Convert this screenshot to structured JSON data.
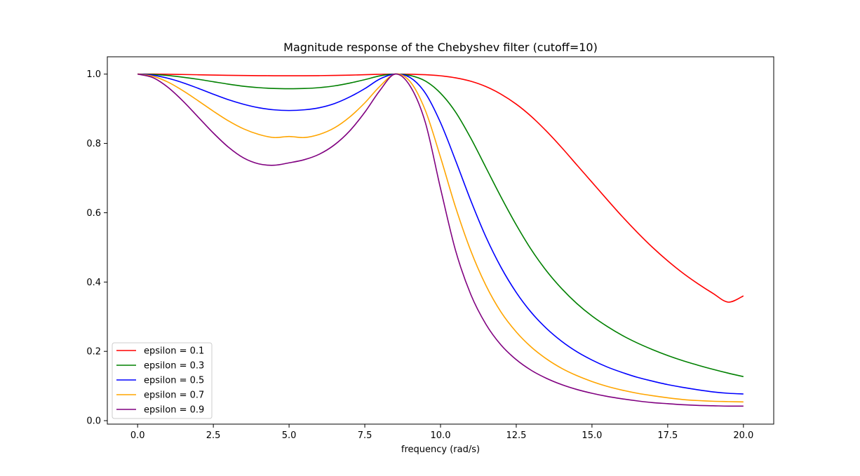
{
  "chart_data": {
    "type": "line",
    "title": "Magnitude response of the Chebyshev filter (cutoff=10)",
    "xlabel": "frequency (rad/s)",
    "ylabel": "",
    "xlim": [
      -1.0,
      21.0
    ],
    "ylim": [
      -0.01,
      1.05
    ],
    "x_ticks": [
      0.0,
      2.5,
      5.0,
      7.5,
      10.0,
      12.5,
      15.0,
      17.5,
      20.0
    ],
    "x_tick_labels": [
      "0.0",
      "2.5",
      "5.0",
      "7.5",
      "10.0",
      "12.5",
      "15.0",
      "17.5",
      "20.0"
    ],
    "y_ticks": [
      0.0,
      0.2,
      0.4,
      0.6,
      0.8,
      1.0
    ],
    "y_tick_labels": [
      "0.0",
      "0.2",
      "0.4",
      "0.6",
      "0.8",
      "1.0"
    ],
    "grid": false,
    "legend_position": "lower-left",
    "x": [
      0,
      0.5,
      1,
      1.5,
      2,
      2.5,
      3,
      3.5,
      4,
      4.5,
      5,
      5.5,
      6,
      6.5,
      7,
      7.5,
      8,
      8.5,
      9,
      9.5,
      10,
      10.5,
      11,
      11.5,
      12,
      12.5,
      13,
      13.5,
      14,
      14.5,
      15,
      15.5,
      16,
      16.5,
      17,
      17.5,
      18,
      18.5,
      19,
      19.5,
      20
    ],
    "series": [
      {
        "name": "epsilon = 0.1",
        "color": "#ff0000",
        "values": [
          1.0,
          1.0,
          0.9995,
          0.9989,
          0.9981,
          0.9973,
          0.9966,
          0.9961,
          0.9956,
          0.9953,
          0.9952,
          0.9953,
          0.9956,
          0.9962,
          0.9971,
          0.9982,
          0.9994,
          1.0,
          0.9996,
          0.9982,
          0.9951,
          0.9892,
          0.9794,
          0.964,
          0.942,
          0.9133,
          0.8776,
          0.8351,
          0.788,
          0.738,
          0.688,
          0.638,
          0.589,
          0.543,
          0.5,
          0.461,
          0.426,
          0.395,
          0.367,
          0.342,
          0.36
        ]
      },
      {
        "name": "epsilon = 0.3",
        "color": "#008000",
        "values": [
          1.0,
          0.999,
          0.996,
          0.991,
          0.985,
          0.978,
          0.971,
          0.965,
          0.961,
          0.9585,
          0.9578,
          0.9585,
          0.961,
          0.966,
          0.974,
          0.984,
          0.995,
          1.0,
          0.996,
          0.98,
          0.945,
          0.89,
          0.815,
          0.73,
          0.645,
          0.565,
          0.493,
          0.432,
          0.381,
          0.338,
          0.302,
          0.272,
          0.246,
          0.224,
          0.205,
          0.188,
          0.173,
          0.16,
          0.148,
          0.137,
          0.127
        ]
      },
      {
        "name": "epsilon = 0.5",
        "color": "#0000ff",
        "values": [
          1.0,
          0.997,
          0.988,
          0.975,
          0.959,
          0.942,
          0.926,
          0.913,
          0.903,
          0.897,
          0.895,
          0.897,
          0.903,
          0.915,
          0.934,
          0.958,
          0.986,
          1.0,
          0.99,
          0.945,
          0.86,
          0.75,
          0.635,
          0.53,
          0.442,
          0.37,
          0.312,
          0.266,
          0.229,
          0.199,
          0.175,
          0.155,
          0.139,
          0.125,
          0.114,
          0.104,
          0.096,
          0.089,
          0.083,
          0.079,
          0.077
        ]
      },
      {
        "name": "epsilon = 0.7",
        "color": "#ffa500",
        "values": [
          1.0,
          0.994,
          0.977,
          0.952,
          0.923,
          0.893,
          0.865,
          0.842,
          0.826,
          0.817,
          0.82,
          0.817,
          0.826,
          0.845,
          0.876,
          0.917,
          0.965,
          1.0,
          0.978,
          0.895,
          0.76,
          0.615,
          0.49,
          0.39,
          0.313,
          0.256,
          0.212,
          0.178,
          0.151,
          0.13,
          0.113,
          0.099,
          0.088,
          0.079,
          0.072,
          0.066,
          0.061,
          0.058,
          0.056,
          0.055,
          0.054
        ]
      },
      {
        "name": "epsilon = 0.9",
        "color": "#800080",
        "values": [
          1.0,
          0.99,
          0.962,
          0.922,
          0.876,
          0.83,
          0.789,
          0.758,
          0.741,
          0.737,
          0.744,
          0.753,
          0.769,
          0.796,
          0.836,
          0.89,
          0.953,
          1.0,
          0.965,
          0.86,
          0.67,
          0.49,
          0.364,
          0.278,
          0.218,
          0.176,
          0.145,
          0.122,
          0.104,
          0.09,
          0.079,
          0.07,
          0.063,
          0.057,
          0.052,
          0.049,
          0.046,
          0.044,
          0.043,
          0.042,
          0.042
        ]
      }
    ]
  }
}
